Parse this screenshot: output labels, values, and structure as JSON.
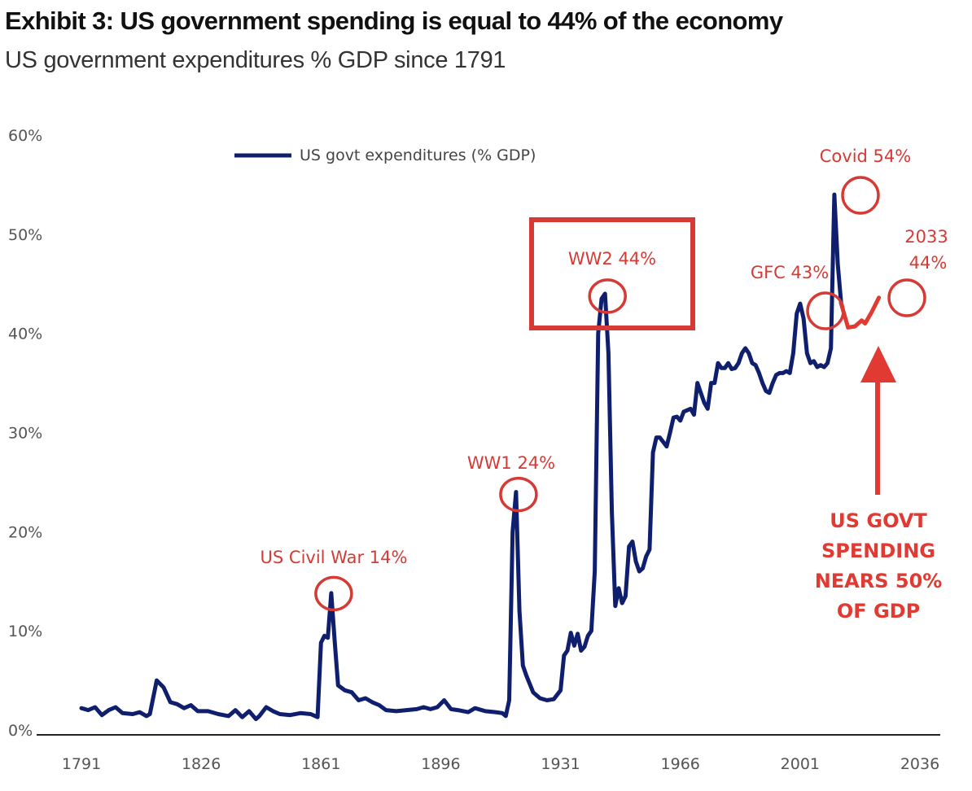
{
  "chart_data": {
    "type": "line",
    "title": "Exhibit 3: US government spending is equal to 44% of the economy",
    "subtitle": "US government expenditures % GDP since 1791",
    "xlim": [
      1791,
      2036
    ],
    "ylim": [
      0,
      60
    ],
    "x_ticks": [
      "1791",
      "1826",
      "1861",
      "1896",
      "1931",
      "1966",
      "2001",
      "2036"
    ],
    "x_tick_values": [
      1791,
      1826,
      1861,
      1896,
      1931,
      1966,
      2001,
      2036
    ],
    "y_ticks": [
      "0%",
      "10%",
      "20%",
      "30%",
      "40%",
      "50%",
      "60%"
    ],
    "y_tick_values": [
      0,
      10,
      20,
      30,
      40,
      50,
      60
    ],
    "grid": false,
    "legend_placement": "top-left",
    "colors": {
      "series": "#0f1f6e",
      "projection": "#e03a33",
      "annotation": "#d63a35"
    },
    "series": [
      {
        "name": "US govt expenditures (% GDP)",
        "points": [
          [
            1791,
            2.2
          ],
          [
            1793,
            2.0
          ],
          [
            1795,
            2.3
          ],
          [
            1797,
            1.5
          ],
          [
            1799,
            2.0
          ],
          [
            1801,
            2.3
          ],
          [
            1803,
            1.7
          ],
          [
            1806,
            1.6
          ],
          [
            1808,
            1.8
          ],
          [
            1810,
            1.4
          ],
          [
            1811,
            1.6
          ],
          [
            1813,
            5.0
          ],
          [
            1815,
            4.3
          ],
          [
            1817,
            2.8
          ],
          [
            1819,
            2.6
          ],
          [
            1821,
            2.2
          ],
          [
            1823,
            2.5
          ],
          [
            1825,
            1.9
          ],
          [
            1828,
            1.9
          ],
          [
            1831,
            1.6
          ],
          [
            1834,
            1.4
          ],
          [
            1836,
            2.0
          ],
          [
            1838,
            1.3
          ],
          [
            1840,
            1.9
          ],
          [
            1842,
            1.1
          ],
          [
            1843,
            1.4
          ],
          [
            1845,
            2.3
          ],
          [
            1847,
            1.9
          ],
          [
            1849,
            1.6
          ],
          [
            1852,
            1.5
          ],
          [
            1855,
            1.7
          ],
          [
            1858,
            1.6
          ],
          [
            1860,
            1.3
          ],
          [
            1861,
            8.8
          ],
          [
            1862,
            9.5
          ],
          [
            1863,
            9.3
          ],
          [
            1864,
            13.8
          ],
          [
            1865,
            9.0
          ],
          [
            1866,
            4.5
          ],
          [
            1868,
            4.0
          ],
          [
            1870,
            3.8
          ],
          [
            1872,
            3.0
          ],
          [
            1874,
            3.2
          ],
          [
            1876,
            2.8
          ],
          [
            1878,
            2.5
          ],
          [
            1880,
            2.0
          ],
          [
            1883,
            1.9
          ],
          [
            1886,
            2.0
          ],
          [
            1889,
            2.1
          ],
          [
            1891,
            2.3
          ],
          [
            1893,
            2.1
          ],
          [
            1895,
            2.3
          ],
          [
            1897,
            3.0
          ],
          [
            1899,
            2.1
          ],
          [
            1901,
            2.0
          ],
          [
            1904,
            1.8
          ],
          [
            1906,
            2.2
          ],
          [
            1909,
            1.9
          ],
          [
            1912,
            1.8
          ],
          [
            1914,
            1.7
          ],
          [
            1915,
            1.4
          ],
          [
            1916,
            3.0
          ],
          [
            1917,
            20.0
          ],
          [
            1918,
            24.0
          ],
          [
            1919,
            12.0
          ],
          [
            1920,
            6.5
          ],
          [
            1921,
            5.5
          ],
          [
            1923,
            3.8
          ],
          [
            1925,
            3.2
          ],
          [
            1927,
            3.0
          ],
          [
            1929,
            3.1
          ],
          [
            1931,
            4.0
          ],
          [
            1932,
            7.5
          ],
          [
            1933,
            8.0
          ],
          [
            1934,
            9.8
          ],
          [
            1935,
            8.5
          ],
          [
            1936,
            9.7
          ],
          [
            1937,
            8.0
          ],
          [
            1938,
            8.4
          ],
          [
            1939,
            9.5
          ],
          [
            1940,
            10.0
          ],
          [
            1941,
            16.0
          ],
          [
            1942,
            40.0
          ],
          [
            1943,
            43.5
          ],
          [
            1944,
            44.0
          ],
          [
            1945,
            38.0
          ],
          [
            1946,
            22.0
          ],
          [
            1947,
            12.5
          ],
          [
            1948,
            14.3
          ],
          [
            1949,
            12.8
          ],
          [
            1950,
            13.5
          ],
          [
            1951,
            18.5
          ],
          [
            1952,
            19.0
          ],
          [
            1953,
            17.0
          ],
          [
            1954,
            16.0
          ],
          [
            1955,
            16.3
          ],
          [
            1956,
            17.5
          ],
          [
            1957,
            18.2
          ],
          [
            1958,
            28.0
          ],
          [
            1959,
            29.5
          ],
          [
            1960,
            29.5
          ],
          [
            1962,
            28.6
          ],
          [
            1963,
            30.0
          ],
          [
            1964,
            31.5
          ],
          [
            1965,
            31.6
          ],
          [
            1966,
            31.2
          ],
          [
            1967,
            32.1
          ],
          [
            1969,
            32.4
          ],
          [
            1970,
            31.8
          ],
          [
            1971,
            35.0
          ],
          [
            1972,
            34.0
          ],
          [
            1973,
            33.0
          ],
          [
            1974,
            32.4
          ],
          [
            1975,
            35.0
          ],
          [
            1976,
            35.0
          ],
          [
            1977,
            37.0
          ],
          [
            1978,
            36.5
          ],
          [
            1979,
            36.5
          ],
          [
            1980,
            37.0
          ],
          [
            1981,
            36.4
          ],
          [
            1982,
            36.5
          ],
          [
            1983,
            37.0
          ],
          [
            1984,
            38.0
          ],
          [
            1985,
            38.5
          ],
          [
            1986,
            38.0
          ],
          [
            1987,
            37.0
          ],
          [
            1988,
            36.8
          ],
          [
            1989,
            36.0
          ],
          [
            1990,
            35.0
          ],
          [
            1991,
            34.2
          ],
          [
            1992,
            34.0
          ],
          [
            1993,
            35.0
          ],
          [
            1994,
            35.8
          ],
          [
            1995,
            36.0
          ],
          [
            1996,
            36.0
          ],
          [
            1997,
            36.2
          ],
          [
            1998,
            36.0
          ],
          [
            1999,
            38.0
          ],
          [
            2000,
            42.0
          ],
          [
            2001,
            43.0
          ],
          [
            2002,
            41.5
          ],
          [
            2003,
            38.0
          ],
          [
            2004,
            37.0
          ],
          [
            2005,
            37.2
          ],
          [
            2006,
            36.6
          ],
          [
            2007,
            36.8
          ],
          [
            2008,
            36.6
          ],
          [
            2009,
            37.0
          ],
          [
            2010,
            38.5
          ],
          [
            2011,
            54.0
          ],
          [
            2012,
            47.0
          ],
          [
            2013,
            43.0
          ]
        ]
      },
      {
        "name": "",
        "style": "projection",
        "points": [
          [
            2013,
            43.0
          ],
          [
            2015,
            40.6
          ],
          [
            2017,
            40.7
          ],
          [
            2019,
            41.3
          ],
          [
            2020,
            41.0
          ],
          [
            2022,
            42.2
          ],
          [
            2024,
            43.6
          ]
        ]
      }
    ],
    "annotations": [
      {
        "text": "US Civil War 14%",
        "x": 1864,
        "y": 14
      },
      {
        "text": "WW1 24%",
        "x": 1918,
        "y": 24
      },
      {
        "text": "WW2 44%",
        "x": 1944,
        "y": 44,
        "boxed": true
      },
      {
        "text": "GFC 43%",
        "x": 2001,
        "y": 43
      },
      {
        "text": "Covid 54%",
        "x": 2011,
        "y": 54
      },
      {
        "text_lines": [
          "2033",
          "44%"
        ],
        "x": 2024,
        "y": 43.6
      }
    ],
    "callout": {
      "lines": [
        "US GOVT",
        "SPENDING",
        "NEARS 50%",
        "OF GDP"
      ]
    }
  }
}
